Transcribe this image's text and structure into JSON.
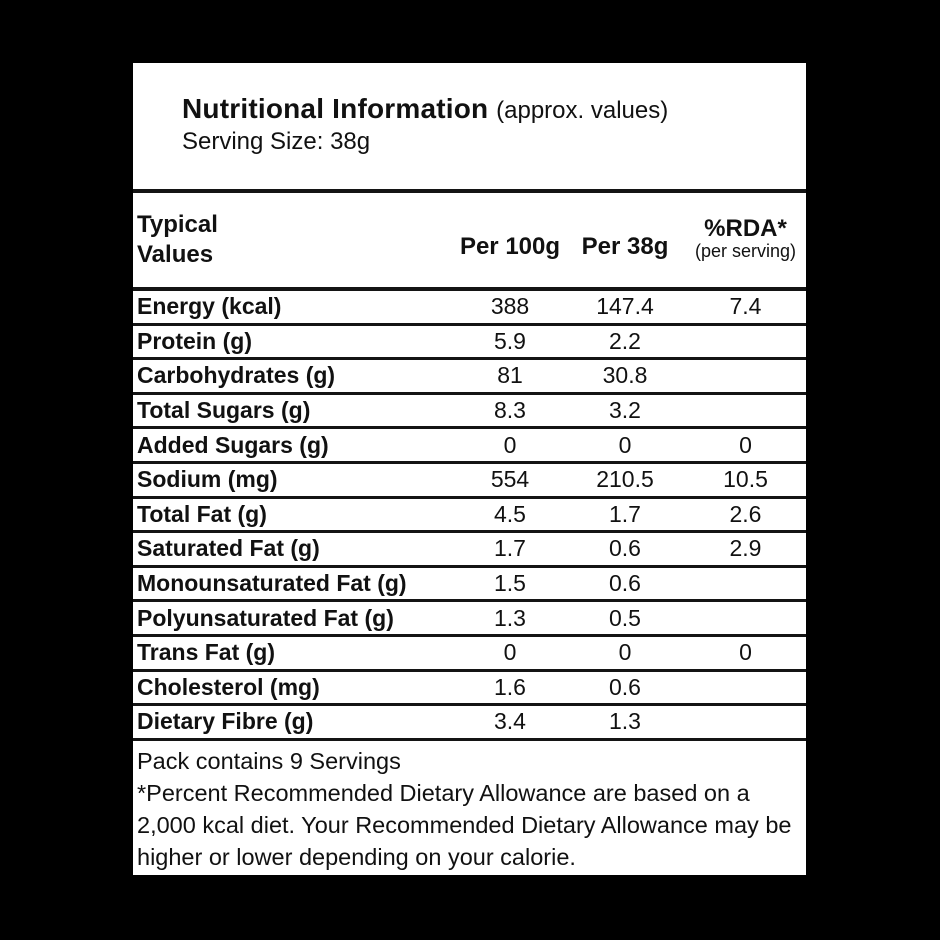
{
  "colors": {
    "background": "#000000",
    "panel": "#ffffff",
    "text": "#111111",
    "rule": "#141414"
  },
  "label": {
    "title": "Nutritional Information",
    "title_suffix": "(approx. values)",
    "serving_size": "Serving Size: 38g"
  },
  "table": {
    "header": {
      "corner": "Typical Values",
      "col_per_100g": "Per 100g",
      "col_per_38g": "Per 38g",
      "col_rda": "%RDA*",
      "col_rda_sub": "(per serving)"
    },
    "rows": [
      {
        "label": "Energy (kcal)",
        "per_100g": "388",
        "per_38g": "147.4",
        "rda": "7.4"
      },
      {
        "label": "Protein (g)",
        "per_100g": "5.9",
        "per_38g": "2.2",
        "rda": ""
      },
      {
        "label": "Carbohydrates (g)",
        "per_100g": "81",
        "per_38g": "30.8",
        "rda": ""
      },
      {
        "label": "Total Sugars (g)",
        "per_100g": "8.3",
        "per_38g": "3.2",
        "rda": ""
      },
      {
        "label": "Added Sugars (g)",
        "per_100g": "0",
        "per_38g": "0",
        "rda": "0"
      },
      {
        "label": "Sodium (mg)",
        "per_100g": "554",
        "per_38g": "210.5",
        "rda": "10.5"
      },
      {
        "label": "Total Fat (g)",
        "per_100g": "4.5",
        "per_38g": "1.7",
        "rda": "2.6"
      },
      {
        "label": "Saturated Fat (g)",
        "per_100g": "1.7",
        "per_38g": "0.6",
        "rda": "2.9"
      },
      {
        "label": "Monounsaturated Fat (g)",
        "per_100g": "1.5",
        "per_38g": "0.6",
        "rda": ""
      },
      {
        "label": "Polyunsaturated Fat (g)",
        "per_100g": "1.3",
        "per_38g": "0.5",
        "rda": ""
      },
      {
        "label": "Trans Fat (g)",
        "per_100g": "0",
        "per_38g": "0",
        "rda": "0"
      },
      {
        "label": "Cholesterol (mg)",
        "per_100g": "1.6",
        "per_38g": "0.6",
        "rda": ""
      },
      {
        "label": "Dietary Fibre (g)",
        "per_100g": "3.4",
        "per_38g": "1.3",
        "rda": ""
      }
    ]
  },
  "footer": {
    "servings": "Pack contains 9 Servings",
    "rda_note": "*Percent Recommended Dietary Allowance are based on a 2,000 kcal diet. Your Recommended Dietary Allowance may be higher or lower depending on your calorie."
  }
}
